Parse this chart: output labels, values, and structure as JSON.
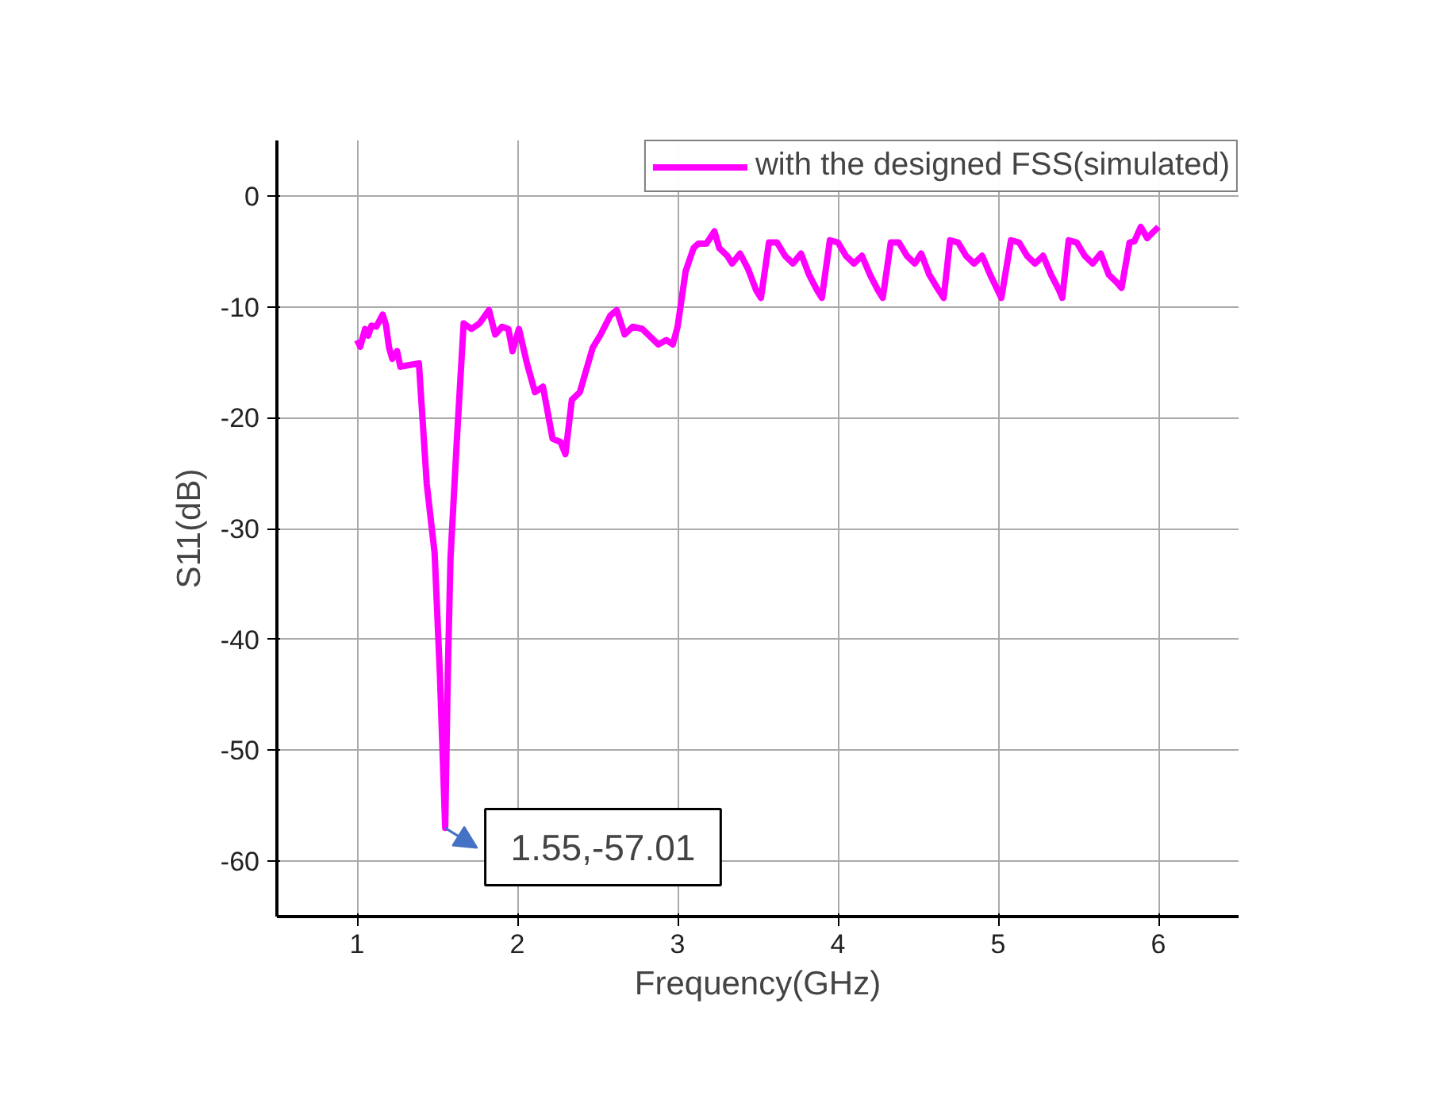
{
  "chart_data": {
    "type": "line",
    "xlabel": "Frequency(GHz)",
    "ylabel": "S11(dB)",
    "xlim": [
      0.5,
      6.5
    ],
    "ylim": [
      -65,
      5
    ],
    "xticks": [
      1,
      2,
      3,
      4,
      5,
      6
    ],
    "yticks": [
      0,
      -10,
      -20,
      -30,
      -40,
      -50,
      -60
    ],
    "grid": true,
    "legend": "top right",
    "marker": "none",
    "line_style": "solid",
    "annotations": [
      {
        "text": "1.55,-57.01",
        "x": 1.55,
        "y": -57.01
      }
    ],
    "series": [
      {
        "name": "with the designed FSS(simulated)",
        "color": "#ff00ff",
        "x": [
          1.0,
          1.02,
          1.05,
          1.07,
          1.09,
          1.12,
          1.16,
          1.18,
          1.2,
          1.22,
          1.25,
          1.27,
          1.386,
          1.435,
          1.484,
          1.517,
          1.55,
          1.566,
          1.583,
          1.622,
          1.665,
          1.714,
          1.764,
          1.823,
          1.862,
          1.905,
          1.944,
          1.97,
          2.01,
          2.06,
          2.11,
          2.16,
          2.22,
          2.27,
          2.3,
          2.34,
          2.39,
          2.47,
          2.52,
          2.58,
          2.62,
          2.67,
          2.72,
          2.78,
          2.83,
          2.88,
          2.93,
          2.97,
          3.0,
          3.05,
          3.1,
          3.13,
          3.18,
          3.23,
          3.26,
          3.31,
          3.34,
          3.39,
          3.44,
          3.49,
          3.52,
          3.57,
          3.62,
          3.67,
          3.72,
          3.77,
          3.82,
          3.87,
          3.9,
          3.95,
          4.0,
          4.05,
          4.1,
          4.15,
          4.2,
          4.25,
          4.28,
          4.33,
          4.38,
          4.43,
          4.48,
          4.52,
          4.57,
          4.62,
          4.66,
          4.7,
          4.75,
          4.8,
          4.85,
          4.9,
          4.95,
          4.99,
          5.02,
          5.08,
          5.13,
          5.18,
          5.23,
          5.28,
          5.33,
          5.38,
          5.4,
          5.44,
          5.49,
          5.54,
          5.59,
          5.64,
          5.69,
          5.74,
          5.77,
          5.82,
          5.85,
          5.89,
          5.93,
          6.0
        ],
        "values": [
          -13.0,
          -13.6,
          -12.0,
          -12.6,
          -11.7,
          -11.8,
          -10.7,
          -11.6,
          -13.7,
          -14.7,
          -14.0,
          -15.4,
          -15.1,
          -26.0,
          -32.2,
          -43.2,
          -57.0,
          -43.2,
          -32.7,
          -22.2,
          -11.5,
          -12.0,
          -11.5,
          -10.3,
          -12.5,
          -11.8,
          -12.0,
          -14.0,
          -12.0,
          -15.1,
          -17.7,
          -17.2,
          -21.9,
          -22.2,
          -23.3,
          -18.4,
          -17.7,
          -13.7,
          -12.5,
          -10.8,
          -10.3,
          -12.5,
          -11.8,
          -12.0,
          -12.7,
          -13.4,
          -13.0,
          -13.4,
          -11.8,
          -6.8,
          -4.7,
          -4.3,
          -4.3,
          -3.2,
          -4.7,
          -5.4,
          -6.1,
          -5.2,
          -6.6,
          -8.5,
          -9.2,
          -4.2,
          -4.2,
          -5.4,
          -6.1,
          -5.2,
          -7.1,
          -8.5,
          -9.2,
          -4.0,
          -4.2,
          -5.4,
          -6.1,
          -5.4,
          -7.1,
          -8.5,
          -9.2,
          -4.2,
          -4.2,
          -5.4,
          -6.1,
          -5.2,
          -7.1,
          -8.3,
          -9.2,
          -4.0,
          -4.2,
          -5.4,
          -6.1,
          -5.4,
          -7.1,
          -8.3,
          -9.2,
          -4.0,
          -4.2,
          -5.4,
          -6.1,
          -5.4,
          -7.1,
          -8.5,
          -9.2,
          -4.0,
          -4.2,
          -5.4,
          -6.1,
          -5.2,
          -7.1,
          -7.8,
          -8.3,
          -4.2,
          -4.1,
          -2.8,
          -3.8,
          -2.8
        ]
      }
    ]
  }
}
